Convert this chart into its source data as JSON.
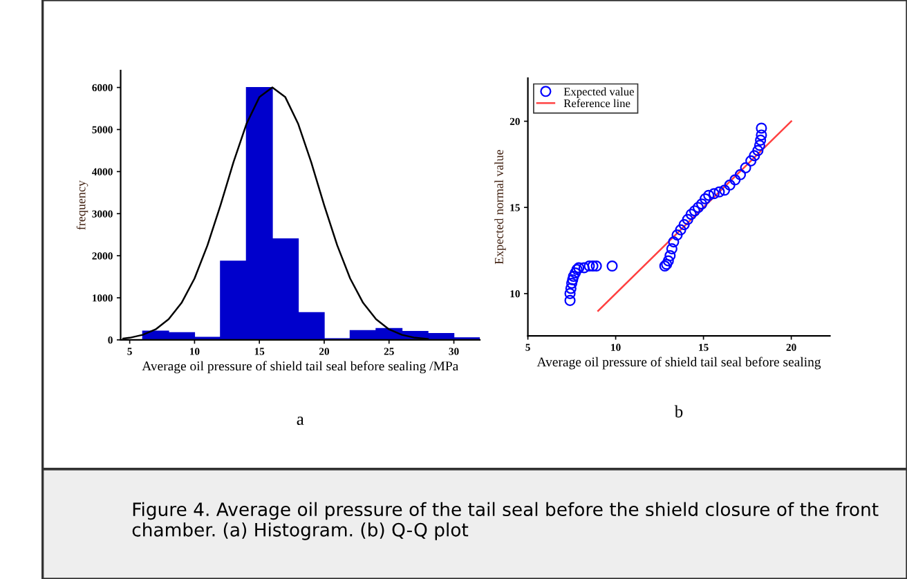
{
  "chart_data": [
    {
      "type": "histogram",
      "xlabel": "Average oil pressure of shield tail seal before sealing /MPa",
      "ylabel": "frequency",
      "bins": [
        6,
        8,
        10,
        12,
        14,
        16,
        18,
        20,
        22,
        24,
        26,
        28,
        30,
        32
      ],
      "series": [
        {
          "color": "#0000cc",
          "values": [
            210,
            170,
            60,
            1870,
            6000,
            2400,
            650,
            30,
            220,
            270,
            200,
            150,
            50
          ]
        },
        {
          "type": "line",
          "color": "#000000",
          "x": [
            4.5,
            5,
            6,
            7,
            8,
            9,
            10,
            11,
            12,
            13,
            14,
            15,
            16,
            17,
            18,
            19,
            20,
            21,
            22,
            23,
            24,
            25,
            26,
            27,
            28
          ],
          "values": [
            30,
            50,
            120,
            250,
            490,
            880,
            1460,
            2250,
            3200,
            4220,
            5130,
            5770,
            6000,
            5770,
            5130,
            4220,
            3200,
            2250,
            1460,
            880,
            490,
            250,
            120,
            50,
            20
          ]
        }
      ],
      "xlim": [
        4.3,
        32
      ],
      "xticks": [
        5,
        10,
        15,
        20,
        25,
        30
      ],
      "ylim": [
        0,
        6400
      ],
      "yticks": [
        0,
        1000,
        2000,
        3000,
        4000,
        5000,
        6000
      ],
      "annotations": [
        "a",
        "Figure 4. Average oil pressure of the tail seal before the shield closure of the front chamber. (a) Histogram. (b) Q-Q plot"
      ]
    },
    {
      "type": "scatter",
      "xlabel": "Average oil pressure of shield tail seal before sealing",
      "ylabel": "Expected normal value",
      "series": [
        {
          "name": "Expected value",
          "color": "#0000ff",
          "marker": "circle",
          "x": [
            7.4,
            7.4,
            7.45,
            7.5,
            7.55,
            7.6,
            7.7,
            7.8,
            7.9,
            8.2,
            8.5,
            8.7,
            8.9,
            9.8,
            12.8,
            12.9,
            13.0,
            13.1,
            13.2,
            13.3,
            13.5,
            13.7,
            13.9,
            14.1,
            14.3,
            14.5,
            14.7,
            14.9,
            15.1,
            15.3,
            15.6,
            15.9,
            16.2,
            16.5,
            16.8,
            17.1,
            17.4,
            17.7,
            17.9,
            18.1,
            18.2,
            18.25,
            18.3,
            18.3
          ],
          "values": [
            9.6,
            10.0,
            10.3,
            10.6,
            10.8,
            11.0,
            11.2,
            11.4,
            11.5,
            11.5,
            11.6,
            11.6,
            11.6,
            11.6,
            11.6,
            11.7,
            11.9,
            12.2,
            12.6,
            13.0,
            13.4,
            13.7,
            14.0,
            14.3,
            14.6,
            14.8,
            15.0,
            15.2,
            15.5,
            15.7,
            15.8,
            15.9,
            16.0,
            16.3,
            16.6,
            16.9,
            17.3,
            17.7,
            18.0,
            18.3,
            18.6,
            18.9,
            19.2,
            19.6
          ]
        },
        {
          "type": "line",
          "name": "Reference line",
          "color": "#ff4040",
          "x": [
            9,
            20
          ],
          "values": [
            9,
            20
          ]
        }
      ],
      "legend": "top left",
      "xlim": [
        5,
        22.2
      ],
      "xticks": [
        5,
        10,
        15,
        20
      ],
      "ylim": [
        7.55,
        22.5
      ],
      "yticks": [
        10,
        15,
        20
      ],
      "annotations": [
        "b"
      ]
    }
  ]
}
